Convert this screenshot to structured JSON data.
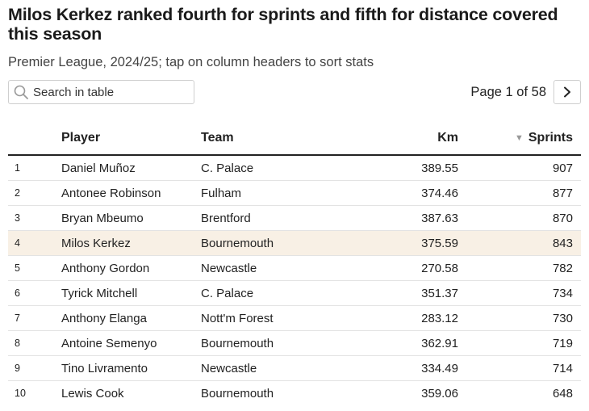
{
  "title": "Milos Kerkez ranked fourth for sprints and fifth for distance covered this season",
  "subtitle": "Premier League, 2024/25; tap on column headers to sort stats",
  "search": {
    "placeholder": "Search in table"
  },
  "pagination": {
    "label": "Page 1 of 58",
    "next_icon": "chevron-right-icon"
  },
  "table": {
    "columns": {
      "rank": "",
      "player": "Player",
      "team": "Team",
      "km": "Km",
      "sprints": "Sprints"
    },
    "sorted_by": "Sprints",
    "sort_direction": "descending",
    "highlight_color": "#f8f0e5",
    "rows": [
      {
        "rank": "1",
        "player": "Daniel Muñoz",
        "team": "C. Palace",
        "km": "389.55",
        "sprints": "907"
      },
      {
        "rank": "2",
        "player": "Antonee Robinson",
        "team": "Fulham",
        "km": "374.46",
        "sprints": "877"
      },
      {
        "rank": "3",
        "player": "Bryan Mbeumo",
        "team": "Brentford",
        "km": "387.63",
        "sprints": "870"
      },
      {
        "rank": "4",
        "player": "Milos Kerkez",
        "team": "Bournemouth",
        "km": "375.59",
        "sprints": "843",
        "highlighted": true
      },
      {
        "rank": "5",
        "player": "Anthony Gordon",
        "team": "Newcastle",
        "km": "270.58",
        "sprints": "782"
      },
      {
        "rank": "6",
        "player": "Tyrick Mitchell",
        "team": "C. Palace",
        "km": "351.37",
        "sprints": "734"
      },
      {
        "rank": "7",
        "player": "Anthony Elanga",
        "team": "Nott'm Forest",
        "km": "283.12",
        "sprints": "730"
      },
      {
        "rank": "8",
        "player": "Antoine Semenyo",
        "team": "Bournemouth",
        "km": "362.91",
        "sprints": "719"
      },
      {
        "rank": "9",
        "player": "Tino Livramento",
        "team": "Newcastle",
        "km": "334.49",
        "sprints": "714"
      },
      {
        "rank": "10",
        "player": "Lewis Cook",
        "team": "Bournemouth",
        "km": "359.06",
        "sprints": "648"
      }
    ]
  }
}
